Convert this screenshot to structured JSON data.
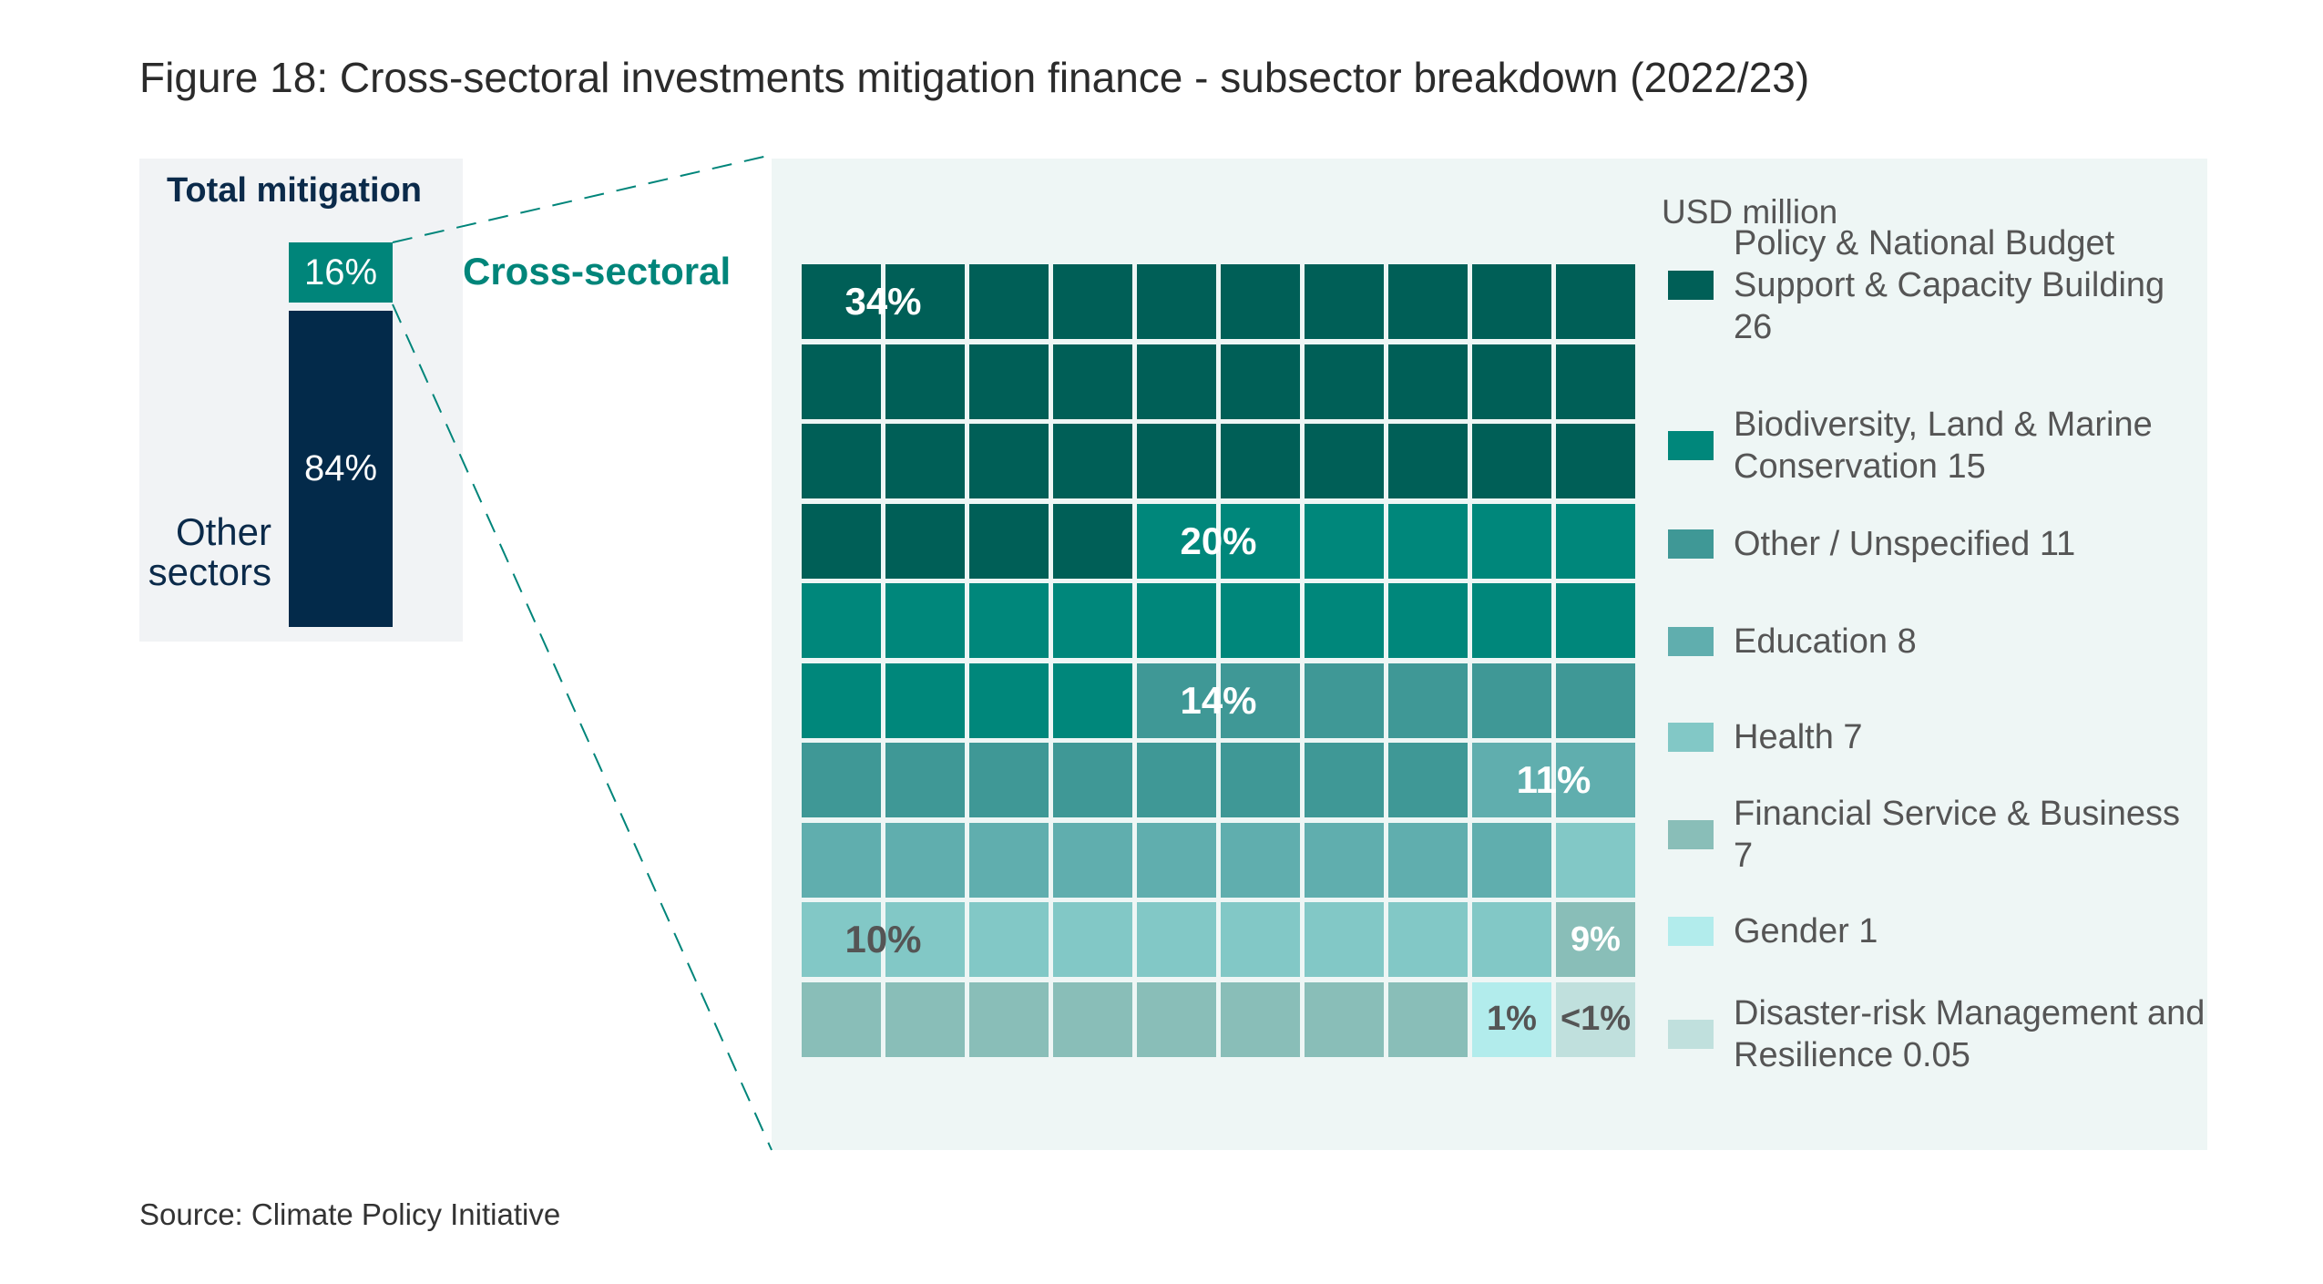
{
  "title": "Figure 18: Cross-sectoral investments mitigation finance - subsector breakdown (2022/23)",
  "source": "Source: Climate Policy Initiative",
  "chart_data": [
    {
      "type": "bar",
      "stacked": true,
      "title": "Total mitigation",
      "series": [
        {
          "name": "Cross-sectoral",
          "value": 16,
          "label": "16%",
          "color": "#00857a"
        },
        {
          "name": "Other sectors",
          "value": 84,
          "label": "84%",
          "color": "#032a4a"
        }
      ]
    },
    {
      "type": "waffle",
      "title": "Cross-sectoral",
      "unit_label": "USD million",
      "grid": {
        "rows": 10,
        "cols": 10
      },
      "categories": [
        {
          "name": "Policy & National Budget Support & Capacity Building",
          "value": 26,
          "legend": "Policy & National Budget Support & Capacity Building 26",
          "percent_label": "34%",
          "squares": 34,
          "color": "#005f57",
          "label_color": "#ffffff"
        },
        {
          "name": "Biodiversity, Land & Marine Conservation",
          "value": 15,
          "legend": "Biodiversity, Land & Marine Conservation 15",
          "percent_label": "20%",
          "squares": 20,
          "color": "#00877b",
          "label_color": "#ffffff"
        },
        {
          "name": "Other / Unspecified",
          "value": 11,
          "legend": "Other / Unspecified 11",
          "percent_label": "14%",
          "squares": 14,
          "color": "#3f9896",
          "label_color": "#ffffff"
        },
        {
          "name": "Education",
          "value": 8,
          "legend": "Education 8",
          "percent_label": "11%",
          "squares": 11,
          "color": "#60aeae",
          "label_color": "#ffffff"
        },
        {
          "name": "Health",
          "value": 7,
          "legend": "Health 7",
          "percent_label": "10%",
          "squares": 10,
          "color": "#82c8c6",
          "label_color": "#555555"
        },
        {
          "name": "Financial Service & Business",
          "value": 7,
          "legend": "Financial Service & Business 7",
          "percent_label": "9%",
          "squares": 9,
          "color": "#89beb8",
          "label_color": "#ffffff"
        },
        {
          "name": "Gender",
          "value": 1,
          "legend": "Gender 1",
          "percent_label": "1%",
          "squares": 1,
          "color": "#b2ecec",
          "label_color": "#555555"
        },
        {
          "name": "Disaster-risk Management and Resilience",
          "value": 0.05,
          "legend": "Disaster-risk Management and Resilience 0.05",
          "percent_label": "<1%",
          "squares": 1,
          "color": "#c0e0dd",
          "label_color": "#555555"
        }
      ]
    }
  ]
}
